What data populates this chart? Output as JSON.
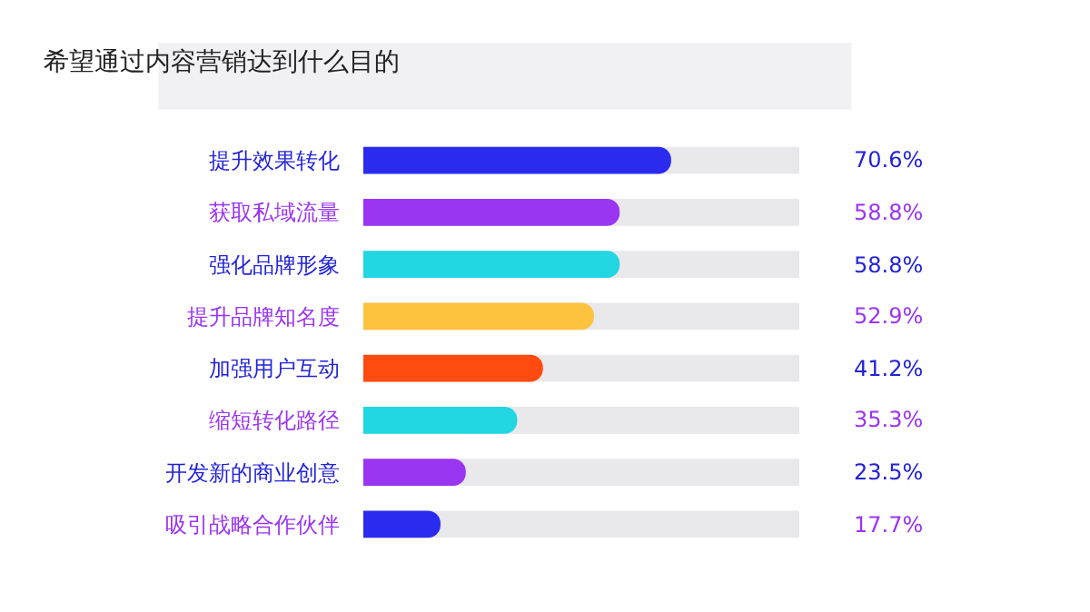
{
  "chart_data": {
    "type": "bar",
    "orientation": "horizontal",
    "title": "希望通过内容营销达到什么目的",
    "categories": [
      "提升效果转化",
      "获取私域流量",
      "强化品牌形象",
      "提升品牌知名度",
      "加强用户互动",
      "缩短转化路径",
      "开发新的商业创意",
      "吸引战略合作伙伴"
    ],
    "values": [
      70.6,
      58.8,
      58.8,
      52.9,
      41.2,
      35.3,
      23.5,
      17.7
    ],
    "colors": [
      "#2b2bf0",
      "#9a35f2",
      "#22d6e2",
      "#fdc23e",
      "#ff4b10",
      "#22d6e2",
      "#9a35f2",
      "#2b2bf0"
    ],
    "value_labels": [
      "70.6%",
      "58.8%",
      "58.8%",
      "52.9%",
      "41.2%",
      "35.3%",
      "23.5%",
      "17.7%"
    ],
    "xlim": [
      0,
      100
    ],
    "tick_labels": "y",
    "grid": false,
    "legend": false
  }
}
